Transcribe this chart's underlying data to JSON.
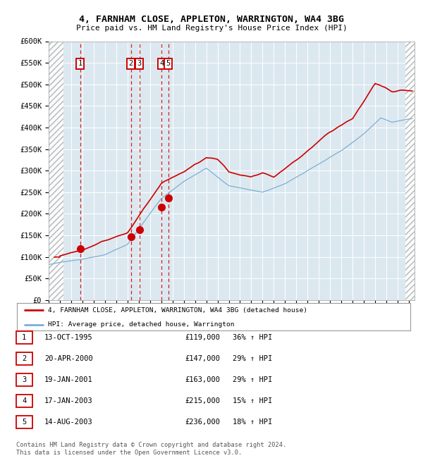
{
  "title": "4, FARNHAM CLOSE, APPLETON, WARRINGTON, WA4 3BG",
  "subtitle": "Price paid vs. HM Land Registry's House Price Index (HPI)",
  "ylim": [
    0,
    600000
  ],
  "yticks": [
    0,
    50000,
    100000,
    150000,
    200000,
    250000,
    300000,
    350000,
    400000,
    450000,
    500000,
    550000,
    600000
  ],
  "ytick_labels": [
    "£0",
    "£50K",
    "£100K",
    "£150K",
    "£200K",
    "£250K",
    "£300K",
    "£350K",
    "£400K",
    "£450K",
    "£500K",
    "£550K",
    "£600K"
  ],
  "xlim_start": 1993.0,
  "xlim_end": 2025.5,
  "sale_dates": [
    1995.79,
    2000.31,
    2001.05,
    2003.05,
    2003.62
  ],
  "sale_prices": [
    119000,
    147000,
    163000,
    215000,
    236000
  ],
  "sale_labels": [
    "1",
    "2",
    "3",
    "4",
    "5"
  ],
  "legend_line1": "4, FARNHAM CLOSE, APPLETON, WARRINGTON, WA4 3BG (detached house)",
  "legend_line2": "HPI: Average price, detached house, Warrington",
  "table_data": [
    [
      "1",
      "13-OCT-1995",
      "£119,000",
      "36% ↑ HPI"
    ],
    [
      "2",
      "20-APR-2000",
      "£147,000",
      "29% ↑ HPI"
    ],
    [
      "3",
      "19-JAN-2001",
      "£163,000",
      "29% ↑ HPI"
    ],
    [
      "4",
      "17-JAN-2003",
      "£215,000",
      "15% ↑ HPI"
    ],
    [
      "5",
      "14-AUG-2003",
      "£236,000",
      "18% ↑ HPI"
    ]
  ],
  "footnote": "Contains HM Land Registry data © Crown copyright and database right 2024.\nThis data is licensed under the Open Government Licence v3.0.",
  "red_color": "#cc0000",
  "blue_color": "#7bafd4",
  "bg_color": "#dce8f0",
  "hatch_left_end": 1994.3,
  "hatch_right_start": 2024.7
}
